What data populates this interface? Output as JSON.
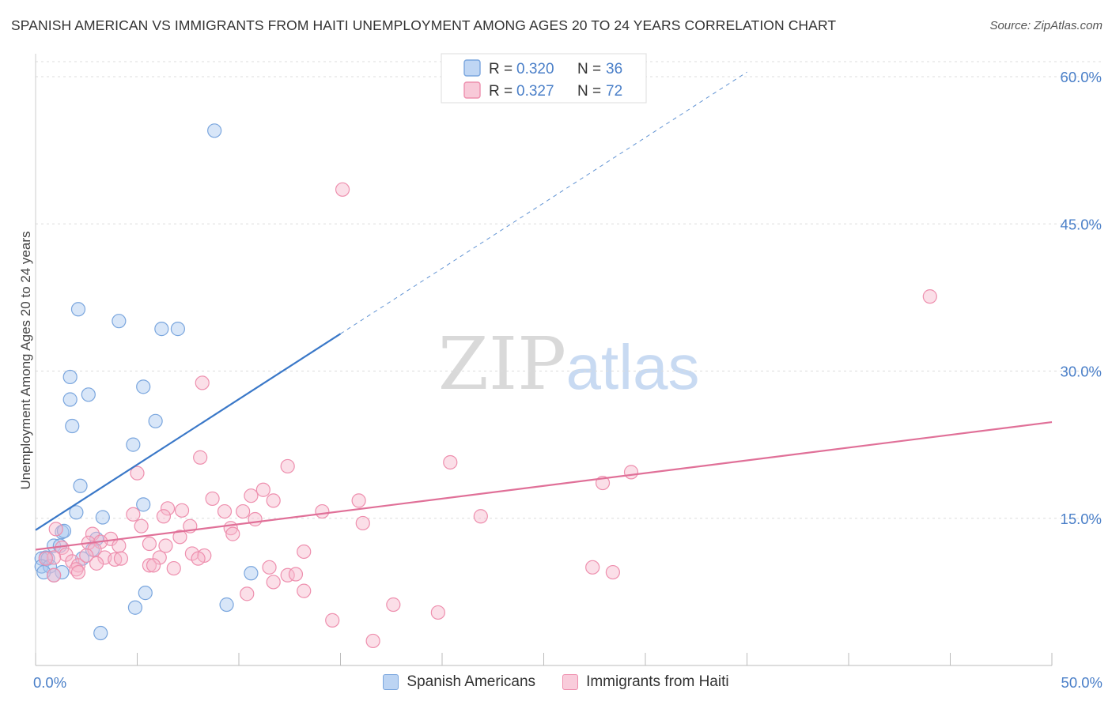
{
  "title": "SPANISH AMERICAN VS IMMIGRANTS FROM HAITI UNEMPLOYMENT AMONG AGES 20 TO 24 YEARS CORRELATION CHART",
  "source": "Source: ZipAtlas.com",
  "watermark": {
    "zip": "ZIP",
    "atlas": "atlas"
  },
  "colors": {
    "blue_fill": "#a9c8f0",
    "blue_stroke": "#7aa6de",
    "blue_line": "#3a78c8",
    "pink_fill": "#f6b7cb",
    "pink_stroke": "#ee8fae",
    "pink_line": "#e07098",
    "axis_label": "#4a7fc8",
    "grid": "#dcdcdc"
  },
  "chart_data": {
    "type": "scatter",
    "xlabel": "",
    "ylabel": "Unemployment Among Ages 20 to 24 years",
    "xlim": [
      0,
      50
    ],
    "ylim": [
      0,
      60
    ],
    "x_tick_labels": [
      {
        "v": 0,
        "label": "0.0%"
      },
      {
        "v": 50,
        "label": "50.0%"
      }
    ],
    "y_tick_labels": [
      {
        "v": 15,
        "label": "15.0%"
      },
      {
        "v": 30,
        "label": "30.0%"
      },
      {
        "v": 45,
        "label": "45.0%"
      },
      {
        "v": 60,
        "label": "60.0%"
      }
    ],
    "legend_stats": [
      {
        "r_label": "R =",
        "r": "0.320",
        "n_label": "N =",
        "n": "36"
      },
      {
        "r_label": "R =",
        "r": "0.327",
        "n_label": "N =",
        "n": "72"
      }
    ],
    "series": [
      {
        "name": "Spanish Americans",
        "color_key": "blue",
        "trend": {
          "x0": 0,
          "y0": 13.8,
          "x1": 15,
          "y1": 33.8,
          "dash_to_x": 35
        },
        "points": [
          [
            8.8,
            54.5
          ],
          [
            2.1,
            36.3
          ],
          [
            4.1,
            35.1
          ],
          [
            6.2,
            34.3
          ],
          [
            7.0,
            34.3
          ],
          [
            1.7,
            29.4
          ],
          [
            2.6,
            27.6
          ],
          [
            1.7,
            27.1
          ],
          [
            5.3,
            28.4
          ],
          [
            1.8,
            24.4
          ],
          [
            5.9,
            24.9
          ],
          [
            4.8,
            22.5
          ],
          [
            2.2,
            18.3
          ],
          [
            5.3,
            16.4
          ],
          [
            2.0,
            15.6
          ],
          [
            3.3,
            15.1
          ],
          [
            1.3,
            13.6
          ],
          [
            1.4,
            13.7
          ],
          [
            3.0,
            12.9
          ],
          [
            0.9,
            12.2
          ],
          [
            1.2,
            12.2
          ],
          [
            2.8,
            11.8
          ],
          [
            0.5,
            11.0
          ],
          [
            0.3,
            10.9
          ],
          [
            0.6,
            10.9
          ],
          [
            2.3,
            10.9
          ],
          [
            0.3,
            10.1
          ],
          [
            0.7,
            10.1
          ],
          [
            0.4,
            9.5
          ],
          [
            1.3,
            9.5
          ],
          [
            0.9,
            9.2
          ],
          [
            10.6,
            9.4
          ],
          [
            5.4,
            7.4
          ],
          [
            4.9,
            5.9
          ],
          [
            9.4,
            6.2
          ],
          [
            3.2,
            3.3
          ]
        ]
      },
      {
        "name": "Immigrants from Haiti",
        "color_key": "pink",
        "trend": {
          "x0": 0,
          "y0": 11.8,
          "x1": 50,
          "y1": 24.8
        },
        "points": [
          [
            15.1,
            48.5
          ],
          [
            44.0,
            37.6
          ],
          [
            8.2,
            28.8
          ],
          [
            8.1,
            21.2
          ],
          [
            12.4,
            20.3
          ],
          [
            20.4,
            20.7
          ],
          [
            29.3,
            19.7
          ],
          [
            27.9,
            18.6
          ],
          [
            5.0,
            19.6
          ],
          [
            11.2,
            17.9
          ],
          [
            10.6,
            17.3
          ],
          [
            8.7,
            17.0
          ],
          [
            11.7,
            16.8
          ],
          [
            15.9,
            16.8
          ],
          [
            6.5,
            16.0
          ],
          [
            7.2,
            15.8
          ],
          [
            9.3,
            15.7
          ],
          [
            10.2,
            15.7
          ],
          [
            14.1,
            15.7
          ],
          [
            21.9,
            15.2
          ],
          [
            4.8,
            15.4
          ],
          [
            6.3,
            15.2
          ],
          [
            10.8,
            14.9
          ],
          [
            16.1,
            14.5
          ],
          [
            5.2,
            14.2
          ],
          [
            7.6,
            14.2
          ],
          [
            9.6,
            14.0
          ],
          [
            1.0,
            13.9
          ],
          [
            2.8,
            13.4
          ],
          [
            9.7,
            13.4
          ],
          [
            3.7,
            12.9
          ],
          [
            7.1,
            13.1
          ],
          [
            5.6,
            12.4
          ],
          [
            6.4,
            12.2
          ],
          [
            2.6,
            12.5
          ],
          [
            3.2,
            12.6
          ],
          [
            4.1,
            12.2
          ],
          [
            1.3,
            12.0
          ],
          [
            2.9,
            11.8
          ],
          [
            7.7,
            11.4
          ],
          [
            13.2,
            11.6
          ],
          [
            1.5,
            11.3
          ],
          [
            8.3,
            11.2
          ],
          [
            0.9,
            11.0
          ],
          [
            3.4,
            11.0
          ],
          [
            6.1,
            11.0
          ],
          [
            3.9,
            10.8
          ],
          [
            4.2,
            10.9
          ],
          [
            8.0,
            10.9
          ],
          [
            0.5,
            10.9
          ],
          [
            1.8,
            10.6
          ],
          [
            2.1,
            10.2
          ],
          [
            3.0,
            10.4
          ],
          [
            5.6,
            10.2
          ],
          [
            5.8,
            10.2
          ],
          [
            6.8,
            9.9
          ],
          [
            11.5,
            10.0
          ],
          [
            2.0,
            9.8
          ],
          [
            2.1,
            9.5
          ],
          [
            0.9,
            9.2
          ],
          [
            12.4,
            9.2
          ],
          [
            12.8,
            9.3
          ],
          [
            11.7,
            8.5
          ],
          [
            27.4,
            10.0
          ],
          [
            28.4,
            9.5
          ],
          [
            10.4,
            7.3
          ],
          [
            13.2,
            7.6
          ],
          [
            17.6,
            6.2
          ],
          [
            19.8,
            5.4
          ],
          [
            14.6,
            4.6
          ],
          [
            16.6,
            2.5
          ],
          [
            2.5,
            11.2
          ]
        ]
      }
    ]
  }
}
